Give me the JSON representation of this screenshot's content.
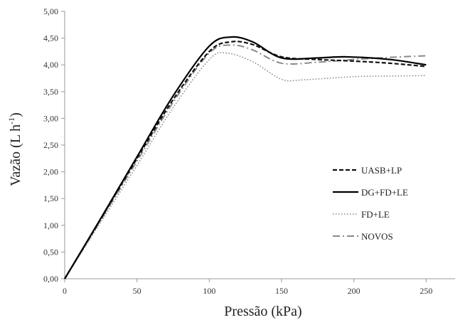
{
  "chart_data": {
    "type": "line",
    "xlabel": "Pressão (kPa)",
    "ylabel": "Vazão (L h",
    "ylabel_sup": "-1",
    "ylabel_close": ")",
    "xlim": [
      0,
      270
    ],
    "ylim": [
      0,
      5
    ],
    "xticks": [
      0,
      50,
      100,
      150,
      200,
      250
    ],
    "xtick_labels": [
      "0",
      "50",
      "100",
      "150",
      "200",
      "250"
    ],
    "yticks": [
      0,
      0.5,
      1,
      1.5,
      2,
      2.5,
      3,
      3.5,
      4,
      4.5,
      5
    ],
    "ytick_labels": [
      "0,00",
      "0,50",
      "1,00",
      "1,50",
      "2,00",
      "2,50",
      "3,00",
      "3,50",
      "4,00",
      "4,50",
      "5,00"
    ],
    "grid": false,
    "legend_position": "right",
    "series": [
      {
        "name": "UASB+LP",
        "color": "#111111",
        "style": "dashed",
        "x": [
          0,
          25,
          50,
          75,
          100,
          115,
          130,
          150,
          175,
          200,
          225,
          250
        ],
        "y": [
          0,
          1.12,
          2.25,
          3.35,
          4.25,
          4.43,
          4.38,
          4.15,
          4.1,
          4.07,
          4.03,
          3.97
        ]
      },
      {
        "name": "DG+FD+LE",
        "color": "#000000",
        "style": "solid",
        "x": [
          0,
          25,
          50,
          75,
          100,
          115,
          130,
          150,
          175,
          195,
          225,
          250
        ],
        "y": [
          0,
          1.13,
          2.28,
          3.42,
          4.35,
          4.52,
          4.43,
          4.13,
          4.13,
          4.15,
          4.1,
          4.0
        ]
      },
      {
        "name": "FD+LE",
        "color": "#8a8a8a",
        "style": "dotted",
        "x": [
          0,
          25,
          50,
          75,
          100,
          112,
          130,
          150,
          165,
          200,
          225,
          250
        ],
        "y": [
          0,
          1.06,
          2.12,
          3.2,
          4.1,
          4.22,
          4.06,
          3.73,
          3.72,
          3.78,
          3.79,
          3.8
        ]
      },
      {
        "name": "NOVOS",
        "color": "#8a8a8a",
        "style": "dashdot",
        "x": [
          0,
          25,
          50,
          75,
          100,
          115,
          130,
          150,
          175,
          200,
          225,
          250
        ],
        "y": [
          0,
          1.1,
          2.2,
          3.3,
          4.22,
          4.37,
          4.28,
          4.03,
          4.05,
          4.1,
          4.14,
          4.17
        ]
      }
    ]
  }
}
